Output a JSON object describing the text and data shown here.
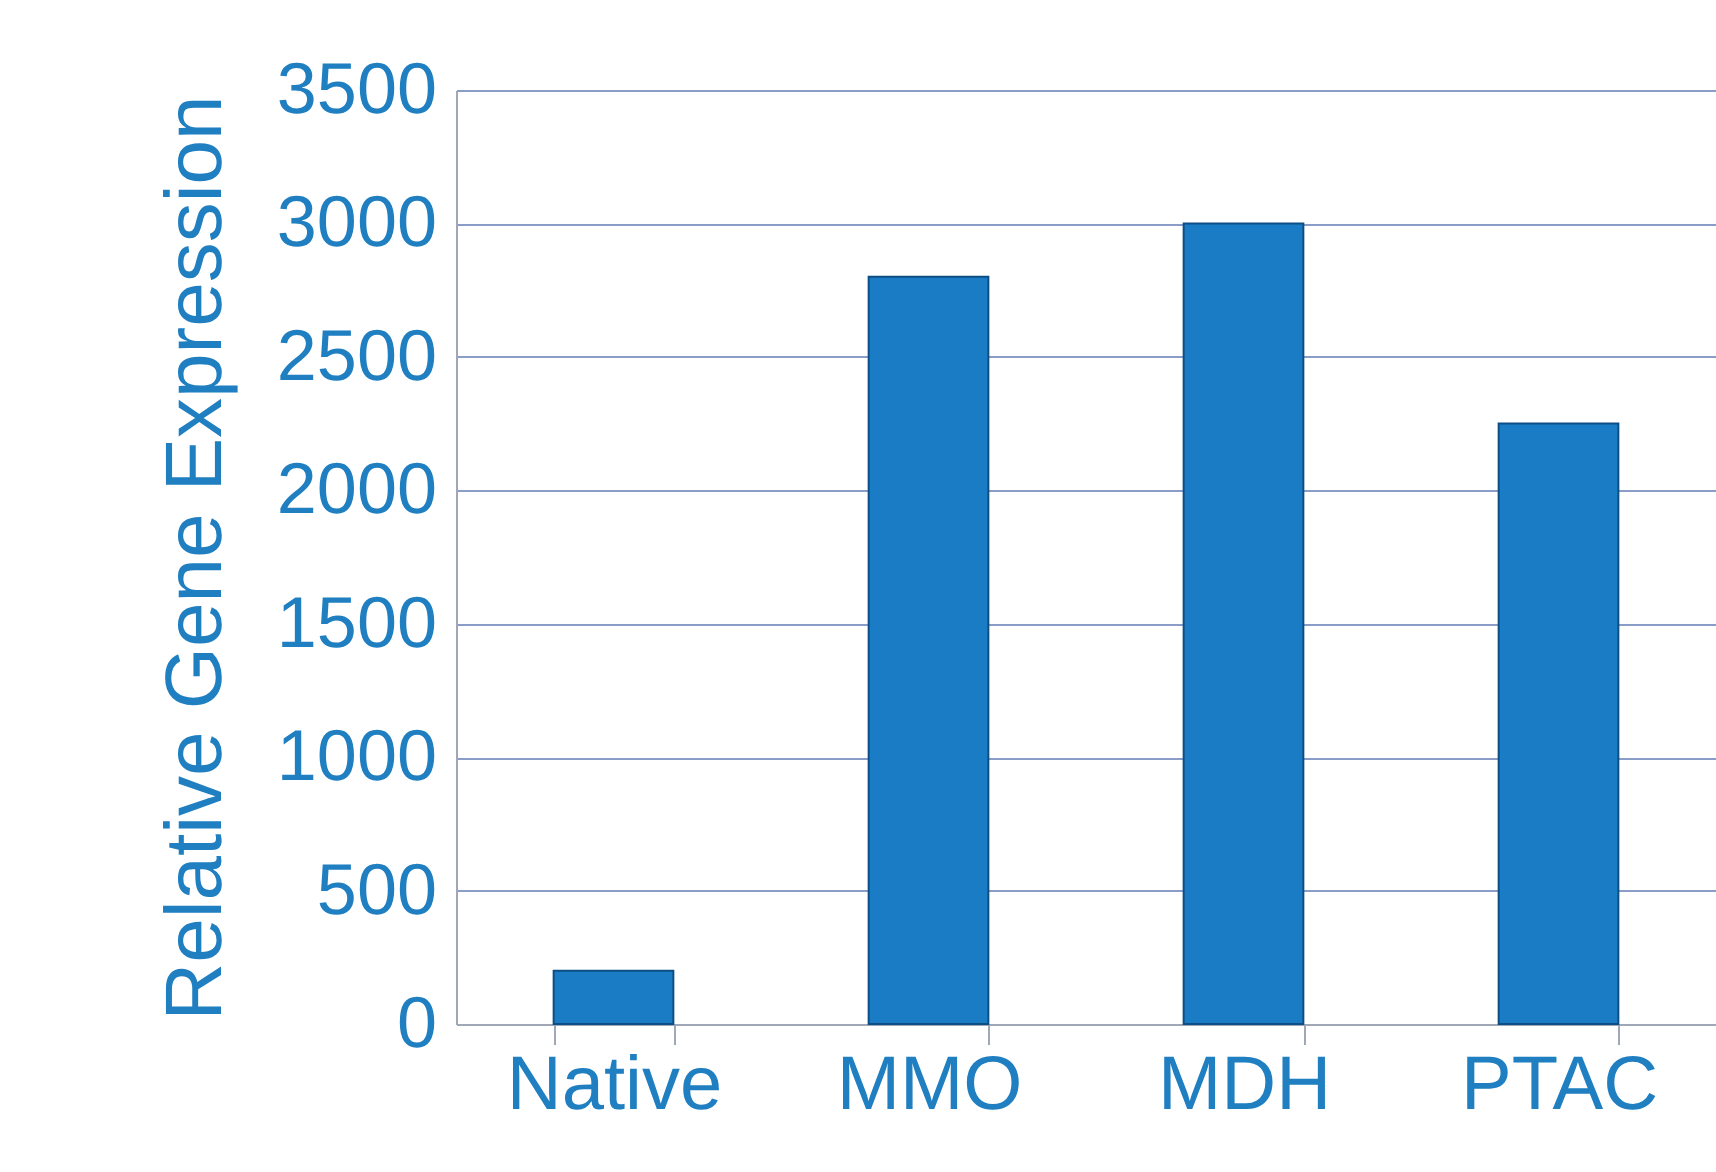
{
  "chart_data": {
    "type": "bar",
    "ylabel": "Relative Gene Expression",
    "categories": [
      "Native",
      "MMO",
      "MDH",
      "PTAC"
    ],
    "values": [
      200,
      2800,
      3000,
      2250
    ],
    "color": "#1a7cc4",
    "ylim": [
      0,
      3500
    ],
    "yticks": [
      0,
      500,
      1000,
      1500,
      2000,
      2500,
      3000,
      3500
    ],
    "grid": "y"
  }
}
